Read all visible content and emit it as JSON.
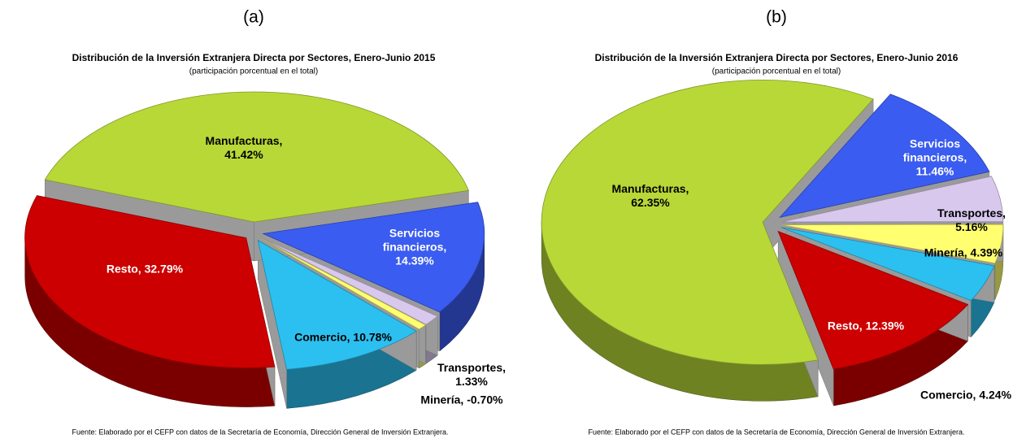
{
  "chart_data": [
    {
      "type": "pie",
      "panel_label": "(a)",
      "title": "Distribución de la Inversión Extranjera Directa por Sectores, Enero-Junio 2015",
      "subtitle": "(participación porcentual en el total)",
      "values": [
        14.39,
        1.33,
        -0.7,
        10.78,
        32.79,
        41.42
      ],
      "value_labels": [
        [
          "Servicios",
          "financieros,",
          "14.39%"
        ],
        [
          "Transportes,",
          "1.33%"
        ],
        [
          "Minería, -0.70%"
        ],
        [
          "Comercio, 10.78%"
        ],
        [
          "Resto, 32.79%"
        ],
        [
          "Manufacturas,",
          "41.42%"
        ]
      ],
      "colors": [
        "#3a5cf0",
        "#d8c8ee",
        "#ffff70",
        "#2cc0f0",
        "#cc0000",
        "#b8d838"
      ],
      "source": "Fuente: Elaborado por el CEFP con datos de la Secretaría de Economía, Dirección General de Inversión Extranjera."
    },
    {
      "type": "pie",
      "panel_label": "(b)",
      "title": "Distribución de la Inversión Extranjera Directa por Sectores, Enero-Junio 2016",
      "subtitle": "(participación porcentual en el total)",
      "values": [
        11.46,
        5.16,
        4.39,
        4.24,
        12.39,
        62.35
      ],
      "value_labels": [
        [
          "Servicios",
          "financieros,",
          "11.46%"
        ],
        [
          "Transportes,",
          "5.16%"
        ],
        [
          "Minería, 4.39%"
        ],
        [
          "Comercio, 4.24%"
        ],
        [
          "Resto, 12.39%"
        ],
        [
          "Manufacturas,",
          "62.35%"
        ]
      ],
      "colors": [
        "#3a5cf0",
        "#d8c8ee",
        "#ffff70",
        "#2cc0f0",
        "#cc0000",
        "#b8d838"
      ],
      "source": "Fuente: Elaborado por el CEFP con datos de la Secretaría de Economía, Dirección General de Inversión Extranjera."
    }
  ]
}
